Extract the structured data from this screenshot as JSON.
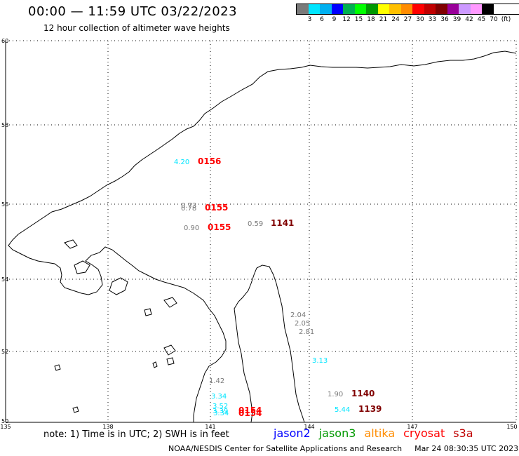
{
  "header": {
    "title": "00:00 — 11:59 UTC 03/22/2023",
    "subtitle": "12 hour collection of altimeter wave heights"
  },
  "legend": {
    "colors": [
      "#7a7a7a",
      "#00e5ff",
      "#00b0f0",
      "#0000ff",
      "#00b050",
      "#00ff00",
      "#009900",
      "#ffff00",
      "#ffc000",
      "#ff8c00",
      "#ff0000",
      "#c00000",
      "#800000",
      "#990099",
      "#cc99ff",
      "#ff99ff",
      "#000000"
    ],
    "labels": [
      "3",
      "6",
      "9",
      "12",
      "15",
      "18",
      "21",
      "24",
      "27",
      "30",
      "33",
      "36",
      "39",
      "42",
      "45",
      "70",
      "(ft)"
    ]
  },
  "axes": {
    "lat_labels": [
      "60",
      "58",
      "56",
      "54",
      "52",
      "50"
    ],
    "lon_labels": [
      "135",
      "138",
      "141",
      "144",
      "147",
      "150"
    ]
  },
  "observations": [
    {
      "swh": "4.20",
      "time": "0156",
      "swh_color": "#00e5ff",
      "time_color": "#ff0000"
    },
    {
      "swh": "0.73",
      "time": "",
      "swh_color": "#7a7a7a",
      "time_color": "#ff0000"
    },
    {
      "swh": "0.78",
      "time": "0155",
      "swh_color": "#7a7a7a",
      "time_color": "#ff0000"
    },
    {
      "swh": "0.90",
      "time": "0155",
      "swh_color": "#7a7a7a",
      "time_color": "#ff0000"
    },
    {
      "swh": "0.59",
      "time": "1141",
      "swh_color": "#7a7a7a",
      "time_color": "#800000"
    },
    {
      "swh": "2.04",
      "time": "",
      "swh_color": "#7a7a7a",
      "time_color": "#000"
    },
    {
      "swh": "2.05",
      "time": "",
      "swh_color": "#7a7a7a",
      "time_color": "#000"
    },
    {
      "swh": "2.81",
      "time": "",
      "swh_color": "#7a7a7a",
      "time_color": "#000"
    },
    {
      "swh": "3.13",
      "time": "",
      "swh_color": "#00e5ff",
      "time_color": "#000"
    },
    {
      "swh": "1.42",
      "time": "",
      "swh_color": "#7a7a7a",
      "time_color": "#000"
    },
    {
      "swh": "3.34",
      "time": "",
      "swh_color": "#00e5ff",
      "time_color": "#000"
    },
    {
      "swh": "3.52",
      "time": "",
      "swh_color": "#00e5ff",
      "time_color": "#000"
    },
    {
      "swh": "3.39",
      "time": "0154",
      "swh_color": "#00e5ff",
      "time_color": "#ff0000"
    },
    {
      "swh": "3.34",
      "time": "0154",
      "swh_color": "#00e5ff",
      "time_color": "#ff0000"
    },
    {
      "swh": "1.90",
      "time": "1140",
      "swh_color": "#7a7a7a",
      "time_color": "#800000"
    },
    {
      "swh": "5.44",
      "time": "1139",
      "swh_color": "#00e5ff",
      "time_color": "#800000"
    }
  ],
  "footer": {
    "note": "note: 1) Time is in UTC; 2) SWH is in feet",
    "satellites": [
      {
        "name": "jason2",
        "color": "#0000ff"
      },
      {
        "name": "jason3",
        "color": "#009900"
      },
      {
        "name": "altika",
        "color": "#ff8c00"
      },
      {
        "name": "cryosat",
        "color": "#ff0000"
      },
      {
        "name": "s3a",
        "color": "#c00000"
      }
    ],
    "credit": "NOAA/NESDIS Center for Satellite Applications and Research",
    "timestamp": "Mar 24 08:30:35 UTC 2023"
  }
}
